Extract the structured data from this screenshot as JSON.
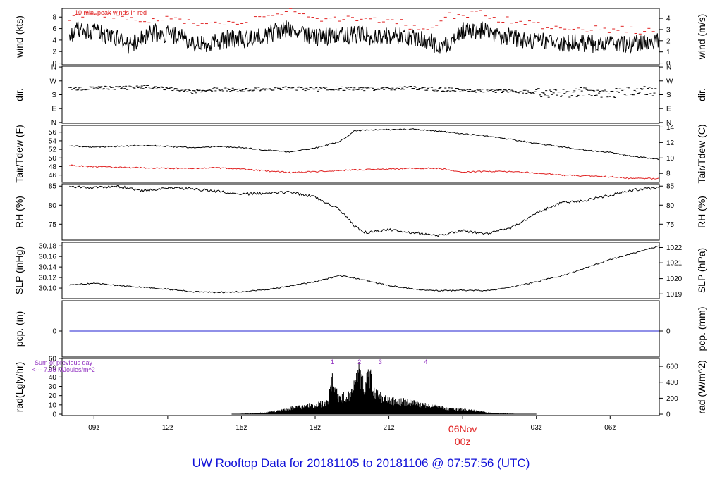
{
  "title": "UW Rooftop Data for 20181105  to  20181106 @ 07:57:56  (UTC)",
  "chart_data": [
    {
      "type": "line",
      "id": "wind",
      "ylabel_left": "wind (kts)",
      "ylabel_right": "wind (m/s)",
      "ylim": [
        -0.3,
        9.5
      ],
      "yticks_left": [
        "0",
        "2",
        "4",
        "6",
        "8"
      ],
      "yticks_right": [
        "0",
        "1",
        "2",
        "3",
        "4"
      ],
      "annotation": "10 min. peak winds in red",
      "series": [
        {
          "color": "#000000",
          "x": [
            8,
            8.5,
            9,
            9.5,
            10,
            10.5,
            11,
            11.5,
            12,
            12.5,
            13,
            13.5,
            14,
            14.5,
            15,
            15.5,
            16,
            16.5,
            17,
            17.5,
            18,
            18.5,
            19,
            19.5,
            20,
            20.5,
            21,
            21.5,
            22,
            22.5,
            23,
            23.5,
            24,
            24.5,
            25,
            25.5,
            26,
            26.5,
            27,
            27.5,
            28,
            28.5,
            29,
            29.5,
            30,
            30.5,
            31,
            31.5,
            32
          ],
          "y": [
            5.2,
            5.8,
            5.5,
            4.8,
            4.2,
            3.0,
            4.6,
            5.2,
            5.0,
            4.6,
            3.2,
            3.4,
            3.8,
            4.2,
            4.0,
            4.5,
            4.8,
            5.6,
            6.0,
            5.0,
            4.5,
            4.6,
            4.8,
            5.0,
            4.9,
            4.4,
            4.6,
            4.8,
            4.5,
            4.2,
            3.0,
            3.2,
            5.6,
            5.4,
            5.8,
            4.8,
            4.6,
            4.0,
            4.2,
            3.6,
            3.4,
            3.6,
            3.5,
            3.3,
            3.4,
            3.2,
            3.4,
            3.3,
            3.8
          ]
        },
        {
          "color": "#e02020",
          "x": [
            8,
            8.7,
            9.4,
            10.1,
            10.8,
            11.5,
            12.2,
            12.9,
            13.6,
            14.3,
            15,
            15.7,
            16.4,
            17.1,
            17.8,
            18.5,
            19.2,
            19.9,
            20.6,
            21.3,
            22,
            22.7,
            23.4,
            24.1,
            24.8,
            25.5,
            26.2,
            26.9,
            27.6,
            28.3,
            29,
            29.7,
            30.4,
            31.1,
            31.8
          ],
          "y": [
            7.8,
            8.2,
            8.6,
            8.0,
            7.2,
            7.6,
            7.8,
            7.0,
            6.6,
            6.8,
            7.2,
            7.6,
            8.2,
            9.0,
            8.2,
            7.4,
            7.6,
            7.8,
            7.4,
            7.4,
            6.2,
            5.8,
            8.2,
            8.4,
            8.6,
            7.6,
            7.4,
            6.6,
            6.4,
            6.2,
            6.0,
            5.8,
            6.0,
            5.6,
            5.8
          ]
        }
      ]
    },
    {
      "type": "scatter",
      "id": "dir",
      "ylabel_left": "dir.",
      "ylabel_right": "dir.",
      "ylim": [
        -5,
        365
      ],
      "yticks_left": [
        "N",
        "E",
        "S",
        "W",
        "N"
      ],
      "yticks_right": [
        "N",
        "E",
        "S",
        "W",
        "N"
      ],
      "series": [
        {
          "color": "#000000",
          "x": [
            8,
            9,
            10,
            11,
            12,
            13,
            14,
            15,
            16,
            17,
            18,
            19,
            20,
            21,
            22,
            23,
            24,
            25,
            26,
            27,
            28,
            29,
            30,
            31,
            32
          ],
          "y": [
            218,
            225,
            222,
            230,
            220,
            200,
            215,
            210,
            220,
            222,
            215,
            220,
            218,
            220,
            225,
            215,
            210,
            205,
            200,
            195,
            190,
            200,
            185,
            210,
            200
          ]
        }
      ]
    },
    {
      "type": "line",
      "id": "temp",
      "ylabel_left": "Tair/Tdew (F)",
      "ylabel_right": "Tair/Tdew (C)",
      "ylim": [
        44.3,
        57.6
      ],
      "yticks_left": [
        "46",
        "48",
        "50",
        "52",
        "54",
        "56"
      ],
      "yticks_right": [
        "8",
        "10",
        "12",
        "14"
      ],
      "series": [
        {
          "name": "",
          "color": "#000000",
          "x": [
            8,
            9,
            10,
            11,
            12,
            13,
            14,
            15,
            16,
            17,
            18,
            19,
            19.6,
            20,
            21,
            22,
            23,
            24,
            25,
            26,
            27,
            28,
            29,
            30,
            31,
            32
          ],
          "y": [
            52.8,
            52.5,
            52.7,
            52.9,
            52.7,
            52.4,
            52.7,
            52.4,
            51.8,
            51.4,
            52.3,
            53.8,
            56.3,
            56.5,
            56.6,
            56.7,
            56.3,
            55.6,
            55.1,
            54.3,
            53.4,
            52.6,
            51.8,
            51.3,
            50.3,
            49.7
          ]
        },
        {
          "name": "",
          "color": "#e02020",
          "x": [
            8,
            9,
            10,
            11,
            12,
            13,
            14,
            15,
            16,
            17,
            18,
            19,
            20,
            21,
            22,
            23,
            24,
            25,
            26,
            27,
            28,
            29,
            30,
            31,
            32
          ],
          "y": [
            48.3,
            48.0,
            47.8,
            47.7,
            47.6,
            47.6,
            47.7,
            47.4,
            47.0,
            46.6,
            46.8,
            47.1,
            47.3,
            47.4,
            47.6,
            47.6,
            46.7,
            46.9,
            46.8,
            46.5,
            46.0,
            45.8,
            45.6,
            45.2,
            45.2
          ]
        }
      ]
    },
    {
      "type": "line",
      "id": "rh",
      "ylabel_left": "RH (%)",
      "ylabel_right": "RH (%)",
      "ylim": [
        70.8,
        85.6
      ],
      "yticks_left": [
        "75",
        "80",
        "85"
      ],
      "yticks_right": [
        "75",
        "80",
        "85"
      ],
      "series": [
        {
          "color": "#000000",
          "x": [
            8,
            9,
            10,
            11,
            12,
            13,
            14,
            15,
            16,
            17,
            18,
            19,
            19.6,
            20,
            21,
            22,
            23,
            24,
            25,
            26,
            27,
            28,
            29,
            30,
            31,
            32
          ],
          "y": [
            84.8,
            84.6,
            84.9,
            83.8,
            84.5,
            84.3,
            83.6,
            82.9,
            83.2,
            83.4,
            82.1,
            78.8,
            74.5,
            72.8,
            73.5,
            72.8,
            72.0,
            73.3,
            72.5,
            74.2,
            77.8,
            80.7,
            81.2,
            82.6,
            84.0,
            84.6
          ]
        }
      ]
    },
    {
      "type": "line",
      "id": "slp",
      "ylabel_left": "SLP (inHg)",
      "ylabel_right": "SLP (hPa)",
      "ylim": [
        30.08,
        30.187
      ],
      "yticks_left": [
        "30.10",
        "30.12",
        "30.14",
        "30.16",
        "30.18"
      ],
      "yticks_right": [
        "1019",
        "1020",
        "1021",
        "1022"
      ],
      "series": [
        {
          "color": "#000000",
          "x": [
            8,
            9,
            10,
            11,
            12,
            13,
            14,
            15,
            16,
            17,
            18,
            19,
            20,
            21,
            22,
            23,
            24,
            25,
            26,
            27,
            28,
            29,
            30,
            31,
            32
          ],
          "y": [
            30.106,
            30.109,
            30.105,
            30.102,
            30.098,
            30.093,
            30.092,
            30.093,
            30.097,
            30.104,
            30.112,
            30.124,
            30.115,
            30.105,
            30.098,
            30.095,
            30.096,
            30.095,
            30.102,
            30.112,
            30.123,
            30.138,
            30.154,
            30.167,
            30.18
          ]
        }
      ]
    },
    {
      "type": "line",
      "id": "pcp",
      "ylabel_left": "pcp. (in)",
      "ylabel_right": "pcp. (mm)",
      "ylim": [
        -0.86,
        1
      ],
      "yticks_left": [
        "0"
      ],
      "yticks_right": [
        "0"
      ],
      "series": [
        {
          "color": "#2020d0",
          "x": [
            8,
            32
          ],
          "y": [
            0,
            0
          ]
        }
      ]
    },
    {
      "type": "area",
      "id": "rad",
      "ylabel_left": "rad(Lgly/hr)",
      "ylabel_right": "rad (W/m^2)",
      "ylim": [
        -1.5,
        60
      ],
      "yticks_left": [
        "0",
        "10",
        "20",
        "30",
        "40",
        "50",
        "60"
      ],
      "yticks_right": [
        "0",
        "200",
        "400",
        "600"
      ],
      "annotation_lines": [
        "Sum of previous day",
        "<--- 7.38 MJoules/m^2"
      ],
      "hour_markers": [
        "1",
        "2",
        "3",
        "4"
      ],
      "hour_marker_x": [
        18.7,
        19.8,
        20.65,
        22.5
      ],
      "series": [
        {
          "color": "#000000",
          "x": [
            14.6,
            15,
            15.5,
            16,
            16.5,
            17,
            17.5,
            18,
            18.5,
            18.7,
            18.9,
            19,
            19.5,
            19.8,
            20,
            20.2,
            20.5,
            21,
            21.5,
            22,
            22.5,
            23,
            23.5,
            24,
            24.5,
            25,
            25.5,
            26,
            26.5,
            27
          ],
          "y": [
            0,
            0.5,
            1,
            2,
            4,
            7,
            9,
            11,
            13,
            41,
            25,
            18,
            25,
            50,
            30,
            45,
            22,
            16,
            15,
            13,
            10,
            8,
            6,
            5,
            4,
            2,
            1,
            0.5,
            0,
            0
          ]
        }
      ]
    },
    {
      "type": "axis",
      "id": "time",
      "xticks": [
        "09z",
        "12z",
        "15z",
        "18z",
        "21z",
        "03z",
        "06z"
      ],
      "xtick_hours": [
        9,
        12,
        15,
        18,
        21,
        27,
        30
      ],
      "day_label": [
        "06Nov",
        "00z"
      ],
      "day_label_hour": 24
    }
  ]
}
